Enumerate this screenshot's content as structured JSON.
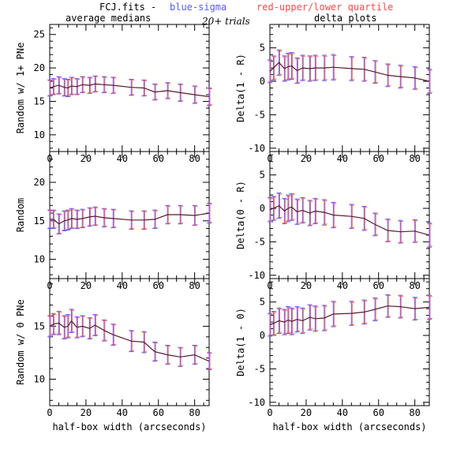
{
  "header": {
    "file_label": "FCJ.fits  -",
    "blue_label": "blue-sigma",
    "red_label": "red-upper/lower quartile",
    "trials_label": "20+ trials",
    "left_column_title": "average medians",
    "right_column_title": "delta plots"
  },
  "colors": {
    "line": "#000000",
    "sigma": "#5a5aff",
    "quartile": "#ff4a4a",
    "median_line": "#5a1a2a"
  },
  "chart_data": [
    {
      "type": "line",
      "panel": "left-top",
      "ylabel": "Random w/ 1+ PNe",
      "xlabel": "",
      "xlim": [
        0,
        88
      ],
      "ylim": [
        7.5,
        26.5
      ],
      "xticks": [
        "0",
        "20",
        "40",
        "60",
        "80"
      ],
      "yticks": [
        "10",
        "15",
        "20",
        "25"
      ],
      "series": [
        {
          "x": [
            0,
            2,
            5,
            8,
            10,
            12,
            15,
            18,
            22,
            25,
            30,
            35,
            45,
            52,
            58,
            65,
            72,
            80,
            88
          ],
          "y": [
            17.0,
            17.2,
            17.4,
            17.1,
            17.0,
            17.3,
            17.2,
            17.5,
            17.4,
            17.6,
            17.5,
            17.4,
            17.1,
            17.0,
            16.4,
            16.6,
            16.3,
            16.0,
            15.7
          ],
          "err": [
            1.2,
            1.2,
            1.3,
            1.3,
            1.3,
            1.3,
            1.2,
            1.2,
            1.2,
            1.2,
            1.2,
            1.2,
            1.2,
            1.2,
            1.2,
            1.2,
            1.3,
            1.3,
            1.3
          ]
        }
      ]
    },
    {
      "type": "line",
      "panel": "right-top",
      "ylabel": "Delta(1 - R)",
      "xlabel": "",
      "xlim": [
        0,
        88
      ],
      "ylim": [
        -10.5,
        8.5
      ],
      "xticks": [
        "0",
        "20",
        "40",
        "60",
        "80"
      ],
      "yticks": [
        "-10",
        "-5",
        "0",
        "5"
      ],
      "series": [
        {
          "x": [
            0,
            2,
            5,
            8,
            10,
            12,
            15,
            18,
            22,
            25,
            30,
            35,
            45,
            52,
            58,
            65,
            72,
            80,
            88
          ],
          "y": [
            1.5,
            2.0,
            2.8,
            1.9,
            2.2,
            2.3,
            1.6,
            2.0,
            1.9,
            2.0,
            2.0,
            2.1,
            1.9,
            1.8,
            1.4,
            0.9,
            0.7,
            0.5,
            0.0
          ],
          "err": [
            1.7,
            1.8,
            1.9,
            1.9,
            2.0,
            2.0,
            1.9,
            1.9,
            1.9,
            1.9,
            1.9,
            1.9,
            1.8,
            1.8,
            1.7,
            1.7,
            1.7,
            1.7,
            1.8
          ]
        }
      ]
    },
    {
      "type": "line",
      "panel": "left-middle",
      "ylabel": "Random",
      "xlabel": "",
      "xlim": [
        0,
        88
      ],
      "ylim": [
        7.5,
        24
      ],
      "xticks": [
        "0",
        "20",
        "40",
        "60",
        "80"
      ],
      "yticks": [
        "10",
        "15",
        "20"
      ],
      "series": [
        {
          "x": [
            0,
            2,
            5,
            8,
            10,
            12,
            15,
            18,
            22,
            25,
            30,
            35,
            45,
            52,
            58,
            65,
            72,
            80,
            88
          ],
          "y": [
            15.2,
            15.2,
            14.6,
            15.0,
            15.1,
            15.3,
            15.2,
            15.3,
            15.5,
            15.6,
            15.4,
            15.3,
            15.1,
            15.1,
            15.2,
            15.8,
            15.8,
            15.7,
            16.0
          ],
          "err": [
            1.2,
            1.2,
            1.3,
            1.3,
            1.3,
            1.3,
            1.2,
            1.2,
            1.2,
            1.2,
            1.2,
            1.2,
            1.2,
            1.2,
            1.2,
            1.2,
            1.2,
            1.3,
            1.3
          ]
        }
      ]
    },
    {
      "type": "line",
      "panel": "right-middle",
      "ylabel": "Delta(0 - R)",
      "xlabel": "",
      "xlim": [
        0,
        88
      ],
      "ylim": [
        -10.5,
        8.5
      ],
      "xticks": [
        "0",
        "20",
        "40",
        "60",
        "80"
      ],
      "yticks": [
        "-10",
        "-5",
        "0",
        "5"
      ],
      "series": [
        {
          "x": [
            0,
            2,
            5,
            8,
            10,
            12,
            15,
            18,
            22,
            25,
            30,
            35,
            45,
            52,
            58,
            65,
            72,
            80,
            88
          ],
          "y": [
            -0.2,
            0.0,
            0.4,
            -0.4,
            0.0,
            0.2,
            -0.5,
            -0.3,
            -0.7,
            -0.4,
            -0.6,
            -1.0,
            -1.2,
            -1.5,
            -2.4,
            -3.3,
            -3.5,
            -3.4,
            -4.0
          ],
          "err": [
            1.8,
            1.8,
            1.9,
            1.9,
            2.0,
            2.0,
            1.9,
            1.9,
            1.9,
            1.9,
            1.9,
            1.9,
            1.8,
            1.8,
            1.7,
            1.7,
            1.7,
            1.7,
            1.8
          ]
        }
      ]
    },
    {
      "type": "line",
      "panel": "left-bottom",
      "ylabel": "Random w/ 0 PNe",
      "xlabel": "half-box width (arcseconds)",
      "xlim": [
        0,
        88
      ],
      "ylim": [
        7.5,
        19.5
      ],
      "xticks": [
        "0",
        "20",
        "40",
        "60",
        "80"
      ],
      "yticks": [
        "10",
        "15"
      ],
      "series": [
        {
          "x": [
            0,
            2,
            5,
            8,
            10,
            12,
            15,
            18,
            22,
            25,
            30,
            35,
            45,
            52,
            58,
            65,
            72,
            80,
            88
          ],
          "y": [
            15.0,
            15.2,
            15.3,
            14.9,
            15.0,
            15.5,
            14.9,
            15.0,
            14.8,
            15.1,
            14.6,
            14.2,
            13.6,
            13.5,
            12.6,
            12.3,
            12.1,
            12.3,
            11.7
          ],
          "err": [
            1.0,
            1.0,
            1.1,
            1.1,
            1.1,
            1.1,
            1.0,
            1.0,
            1.0,
            1.0,
            1.0,
            1.0,
            1.0,
            1.0,
            0.9,
            0.9,
            0.9,
            0.9,
            0.8
          ]
        }
      ]
    },
    {
      "type": "line",
      "panel": "right-bottom",
      "ylabel": "Delta(1 - 0)",
      "xlabel": "half-box width (arcseconds)",
      "xlim": [
        0,
        88
      ],
      "ylim": [
        -10.5,
        8.5
      ],
      "xticks": [
        "0",
        "20",
        "40",
        "60",
        "80"
      ],
      "yticks": [
        "-10",
        "-5",
        "0",
        "5"
      ],
      "series": [
        {
          "x": [
            0,
            2,
            5,
            8,
            10,
            12,
            15,
            18,
            22,
            25,
            30,
            35,
            45,
            52,
            58,
            65,
            72,
            80,
            88
          ],
          "y": [
            1.6,
            1.8,
            2.2,
            2.0,
            2.3,
            2.1,
            2.4,
            2.2,
            2.7,
            2.5,
            2.6,
            3.2,
            3.3,
            3.5,
            3.9,
            4.4,
            4.3,
            4.0,
            4.2
          ],
          "err": [
            1.7,
            1.8,
            1.9,
            1.9,
            2.0,
            2.0,
            1.9,
            1.9,
            1.9,
            1.9,
            1.9,
            1.9,
            1.8,
            1.8,
            1.7,
            1.7,
            1.7,
            1.7,
            1.8
          ]
        }
      ]
    }
  ]
}
